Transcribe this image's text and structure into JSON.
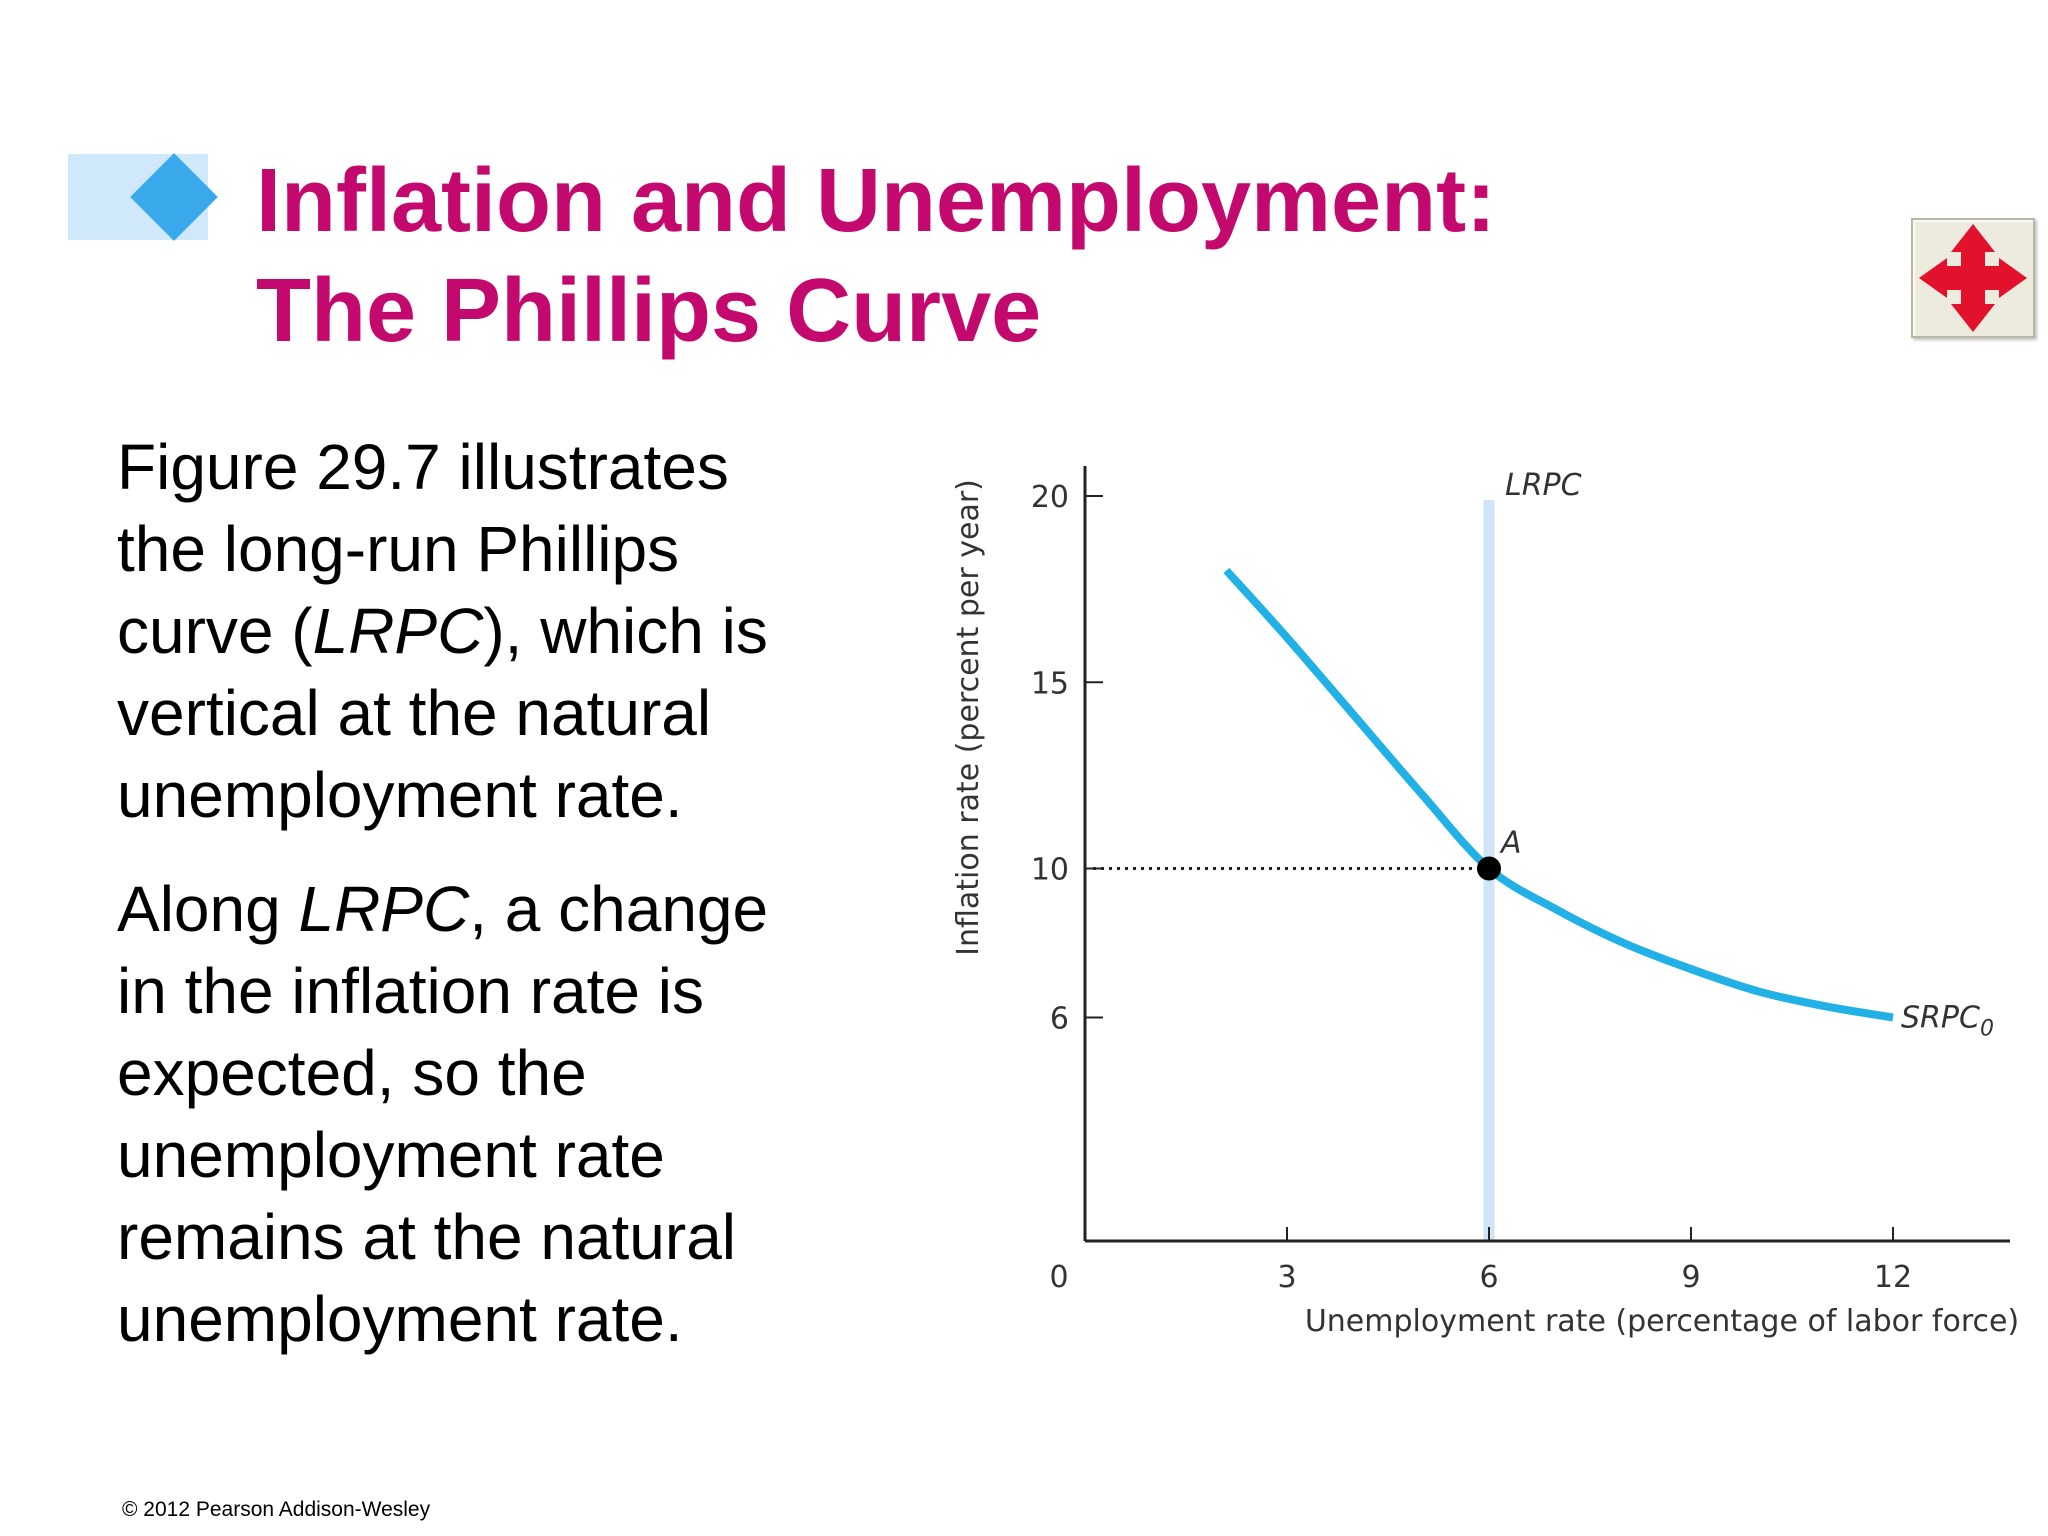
{
  "slide": {
    "title_lines": [
      "Inflation and Unemployment:",
      "The Phillips Curve"
    ],
    "accent_color": "#c4096e",
    "nav_icon": "four-way-arrows-icon",
    "paragraph1": {
      "l1": "Figure 29.7 illustrates",
      "l2": "the long-run Phillips",
      "l3_pre": "curve (",
      "l3_em": "LRPC",
      "l3_post": "), which is",
      "l4": "vertical at the natural",
      "l5": "unemployment rate."
    },
    "paragraph2": {
      "l1_pre": "Along ",
      "l1_em": "LRPC",
      "l1_post": ", a change",
      "l2": "in the inflation rate is",
      "l3": "expected, so the",
      "l4": "unemployment rate",
      "l5": "remains at the natural",
      "l6": "unemployment rate."
    },
    "copyright": "© 2012 Pearson Addison-Wesley"
  },
  "chart_data": {
    "type": "line",
    "xlabel": "Unemployment rate (percentage of labor force)",
    "ylabel": "Inflation rate (percent per year)",
    "xlim": [
      0,
      13.5
    ],
    "ylim": [
      0,
      21
    ],
    "x_ticks": [
      3,
      6,
      9,
      12
    ],
    "y_ticks": [
      6,
      10,
      15,
      20
    ],
    "origin_label": "0",
    "series": [
      {
        "name": "LRPC",
        "color": "#cfe4f7",
        "x": [
          6,
          6
        ],
        "y": [
          0,
          20
        ]
      },
      {
        "name": "SRPC",
        "name_subscript": "0",
        "color": "#21b1e6",
        "x": [
          2.1,
          3,
          4,
          5,
          6,
          7,
          8,
          9,
          10,
          11,
          12
        ],
        "y": [
          18,
          16.2,
          14.1,
          12,
          10,
          8.9,
          8,
          7.3,
          6.7,
          6.3,
          6
        ]
      }
    ],
    "points": [
      {
        "label": "A",
        "x": 6,
        "y": 10
      }
    ],
    "grid": false,
    "legend": "none"
  }
}
